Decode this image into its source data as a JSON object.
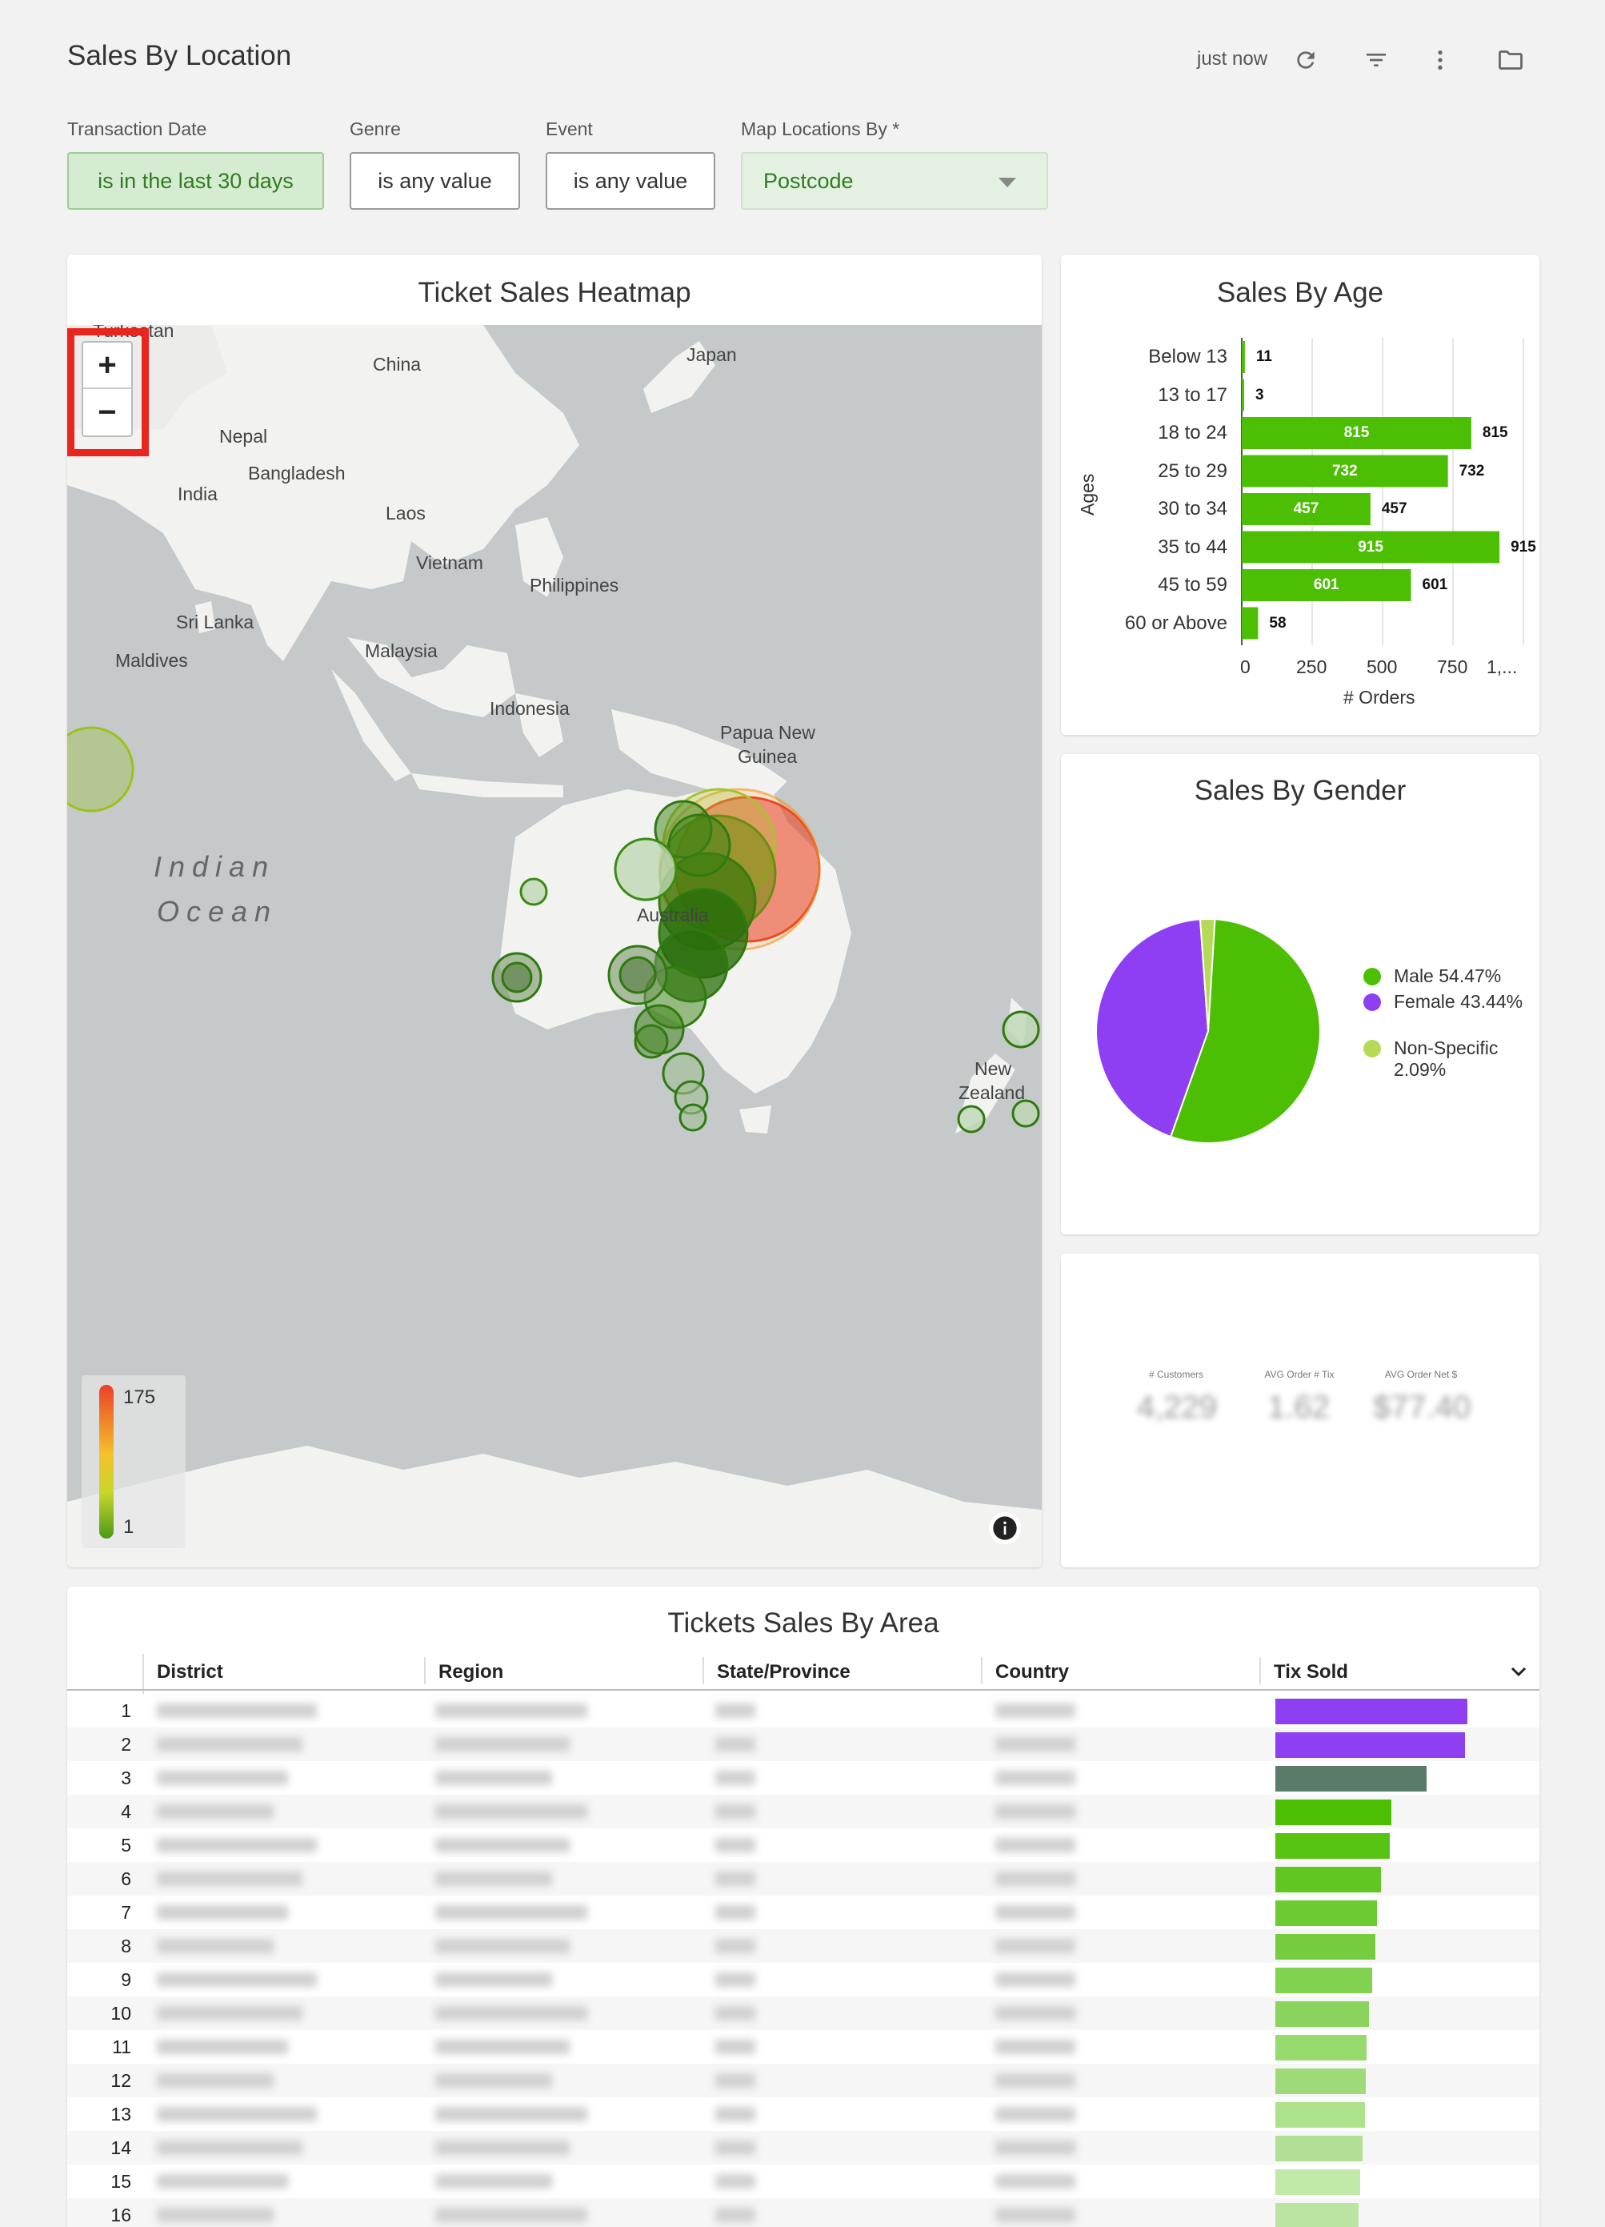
{
  "header": {
    "title": "Sales By Location",
    "updated": "just now"
  },
  "filters": [
    {
      "label": "Transaction Date",
      "value": "is in the last 30 days"
    },
    {
      "label": "Genre",
      "value": "is any value"
    },
    {
      "label": "Event",
      "value": "is any value"
    },
    {
      "label": "Map Locations By *",
      "value": "Postcode"
    }
  ],
  "map": {
    "title": "Ticket Sales Heatmap",
    "zoom_in": "+",
    "zoom_out": "−",
    "labels": {
      "turkestan": "Turkestan",
      "china": "China",
      "japan": "Japan",
      "nepal": "Nepal",
      "bangladesh": "Bangladesh",
      "india": "India",
      "laos": "Laos",
      "vietnam": "Vietnam",
      "philippines": "Philippines",
      "sri_lanka": "Sri Lanka",
      "maldives": "Maldives",
      "malaysia": "Malaysia",
      "indonesia": "Indonesia",
      "papua": "Papua New",
      "guinea": "Guinea",
      "australia": "Australia",
      "new": "New",
      "zealand": "Zealand",
      "indian": "Indian",
      "ocean": "Ocean"
    },
    "legend_max": "175",
    "legend_min": "1",
    "info_icon": "info-icon"
  },
  "age_chart": {
    "title": "Sales By Age",
    "ylabel": "Ages",
    "xlabel": "# Orders",
    "x_ticks": [
      "0",
      "250",
      "500",
      "750",
      "1,..."
    ]
  },
  "gender_chart": {
    "title": "Sales By Gender"
  },
  "kpis": [
    {
      "label": "# Customers",
      "value": "4,229"
    },
    {
      "label": "AVG Order # Tix",
      "value": "1.62"
    },
    {
      "label": "AVG Order Net $",
      "value": "$77.40"
    }
  ],
  "table": {
    "title": "Tickets Sales By Area",
    "columns": [
      "District",
      "Region",
      "State/Province",
      "Country",
      "Tix Sold"
    ],
    "row_numbers": [
      "1",
      "2",
      "3",
      "4",
      "5",
      "6",
      "7",
      "8",
      "9",
      "10",
      "11",
      "12",
      "13",
      "14",
      "15",
      "16"
    ],
    "tix_sold": [
      185,
      183,
      146,
      112,
      110,
      102,
      98,
      96,
      93,
      90,
      88,
      87,
      86,
      84,
      82,
      80
    ]
  },
  "chart_data": [
    {
      "type": "bar",
      "title": "Sales By Age",
      "orientation": "horizontal",
      "categories": [
        "Below 13",
        "13 to 17",
        "18 to 24",
        "25 to 29",
        "30 to 34",
        "35 to 44",
        "45 to 59",
        "60 or Above"
      ],
      "values": [
        11,
        3,
        815,
        732,
        457,
        915,
        601,
        58
      ],
      "xlabel": "# Orders",
      "ylabel": "Ages",
      "xlim": [
        0,
        1000
      ],
      "color": "#4cbf04"
    },
    {
      "type": "pie",
      "title": "Sales By Gender",
      "categories": [
        "Male",
        "Female",
        "Non-Specific"
      ],
      "values": [
        54.47,
        43.44,
        2.09
      ],
      "labels": [
        "Male 54.47%",
        "Female 43.44%",
        "Non-Specific 2.09%"
      ],
      "colors": [
        "#4cbf04",
        "#8f3ff2",
        "#b6d957"
      ],
      "legend": "right"
    }
  ]
}
